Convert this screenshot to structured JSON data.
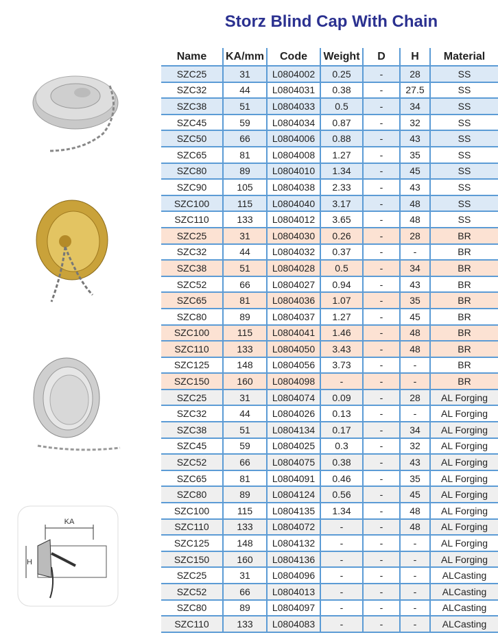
{
  "title": "Storz  Blind Cap With Chain",
  "columns": [
    "Name",
    "KA/mm",
    "Code",
    "Weight",
    "D",
    "H",
    "Material"
  ],
  "diagram_labels": {
    "ka": "KA",
    "h": "H"
  },
  "colors": {
    "title": "#2b3190",
    "border": "#5b9bd5",
    "ss_shade": "#dce9f6",
    "br_shade": "#fce2d3",
    "al_shade": "#efefef"
  },
  "rows": [
    {
      "c": [
        "SZC25",
        "31",
        "L0804002",
        "0.25",
        "-",
        "28",
        "SS"
      ],
      "shade": "blue"
    },
    {
      "c": [
        "SZC32",
        "44",
        "L0804031",
        "0.38",
        "-",
        "27.5",
        "SS"
      ],
      "shade": ""
    },
    {
      "c": [
        "SZC38",
        "51",
        "L0804033",
        "0.5",
        "-",
        "34",
        "SS"
      ],
      "shade": "blue"
    },
    {
      "c": [
        "SZC45",
        "59",
        "L0804034",
        "0.87",
        "-",
        "32",
        "SS"
      ],
      "shade": ""
    },
    {
      "c": [
        "SZC50",
        "66",
        "L0804006",
        "0.88",
        "-",
        "43",
        "SS"
      ],
      "shade": "blue"
    },
    {
      "c": [
        "SZC65",
        "81",
        "L0804008",
        "1.27",
        "-",
        "35",
        "SS"
      ],
      "shade": ""
    },
    {
      "c": [
        "SZC80",
        "89",
        "L0804010",
        "1.34",
        "-",
        "45",
        "SS"
      ],
      "shade": "blue"
    },
    {
      "c": [
        "SZC90",
        "105",
        "L0804038",
        "2.33",
        "-",
        "43",
        "SS"
      ],
      "shade": ""
    },
    {
      "c": [
        "SZC100",
        "115",
        "L0804040",
        "3.17",
        "-",
        "48",
        "SS"
      ],
      "shade": "blue"
    },
    {
      "c": [
        "SZC110",
        "133",
        "L0804012",
        "3.65",
        "-",
        "48",
        "SS"
      ],
      "shade": ""
    },
    {
      "c": [
        "SZC25",
        "31",
        "L0804030",
        "0.26",
        "-",
        "28",
        "BR"
      ],
      "shade": "orange"
    },
    {
      "c": [
        "SZC32",
        "44",
        "L0804032",
        "0.37",
        "-",
        "-",
        "BR"
      ],
      "shade": ""
    },
    {
      "c": [
        "SZC38",
        "51",
        "L0804028",
        "0.5",
        "-",
        "34",
        "BR"
      ],
      "shade": "orange"
    },
    {
      "c": [
        "SZC52",
        "66",
        "L0804027",
        "0.94",
        "-",
        "43",
        "BR"
      ],
      "shade": ""
    },
    {
      "c": [
        "SZC65",
        "81",
        "L0804036",
        "1.07",
        "-",
        "35",
        "BR"
      ],
      "shade": "orange"
    },
    {
      "c": [
        "SZC80",
        "89",
        "L0804037",
        "1.27",
        "-",
        "45",
        "BR"
      ],
      "shade": ""
    },
    {
      "c": [
        "SZC100",
        "115",
        "L0804041",
        "1.46",
        "-",
        "48",
        "BR"
      ],
      "shade": "orange"
    },
    {
      "c": [
        "SZC110",
        "133",
        "L0804050",
        "3.43",
        "-",
        "48",
        "BR"
      ],
      "shade": "orange"
    },
    {
      "c": [
        "SZC125",
        "148",
        "L0804056",
        "3.73",
        "-",
        "-",
        "BR"
      ],
      "shade": ""
    },
    {
      "c": [
        "SZC150",
        "160",
        "L0804098",
        "-",
        "-",
        "-",
        "BR"
      ],
      "shade": "orange"
    },
    {
      "c": [
        "SZC25",
        "31",
        "L0804074",
        "0.09",
        "-",
        "28",
        "AL Forging"
      ],
      "shade": "gray"
    },
    {
      "c": [
        "SZC32",
        "44",
        "L0804026",
        "0.13",
        "-",
        "-",
        "AL Forging"
      ],
      "shade": ""
    },
    {
      "c": [
        "SZC38",
        "51",
        "L0804134",
        "0.17",
        "-",
        "34",
        "AL Forging"
      ],
      "shade": "gray"
    },
    {
      "c": [
        "SZC45",
        "59",
        "L0804025",
        "0.3",
        "-",
        "32",
        "AL Forging"
      ],
      "shade": ""
    },
    {
      "c": [
        "SZC52",
        "66",
        "L0804075",
        "0.38",
        "-",
        "43",
        "AL Forging"
      ],
      "shade": "gray"
    },
    {
      "c": [
        "SZC65",
        "81",
        "L0804091",
        "0.46",
        "-",
        "35",
        "AL Forging"
      ],
      "shade": ""
    },
    {
      "c": [
        "SZC80",
        "89",
        "L0804124",
        "0.56",
        "-",
        "45",
        "AL Forging"
      ],
      "shade": "gray"
    },
    {
      "c": [
        "SZC100",
        "115",
        "L0804135",
        "1.34",
        "-",
        "48",
        "AL Forging"
      ],
      "shade": ""
    },
    {
      "c": [
        "SZC110",
        "133",
        "L0804072",
        "-",
        "-",
        "48",
        "AL Forging"
      ],
      "shade": "gray"
    },
    {
      "c": [
        "SZC125",
        "148",
        "L0804132",
        "-",
        "-",
        "-",
        "AL Forging"
      ],
      "shade": ""
    },
    {
      "c": [
        "SZC150",
        "160",
        "L0804136",
        "-",
        "-",
        "-",
        "AL Forging"
      ],
      "shade": "gray"
    },
    {
      "c": [
        "SZC25",
        "31",
        "L0804096",
        "-",
        "-",
        "-",
        "ALCasting"
      ],
      "shade": ""
    },
    {
      "c": [
        "SZC52",
        "66",
        "L0804013",
        "-",
        "-",
        "-",
        "ALCasting"
      ],
      "shade": "gray"
    },
    {
      "c": [
        "SZC80",
        "89",
        "L0804097",
        "-",
        "-",
        "-",
        "ALCasting"
      ],
      "shade": ""
    },
    {
      "c": [
        "SZC110",
        "133",
        "L0804083",
        "-",
        "-",
        "-",
        "ALCasting"
      ],
      "shade": "gray"
    }
  ]
}
